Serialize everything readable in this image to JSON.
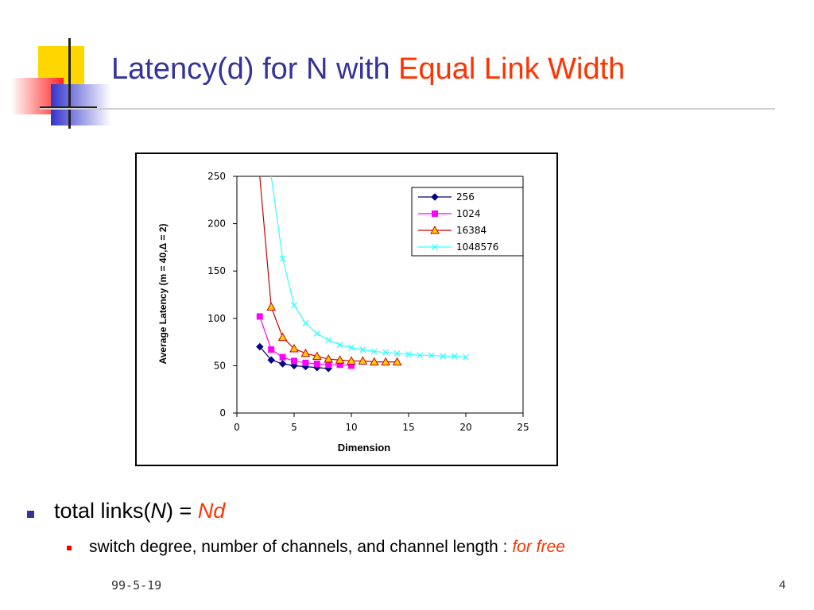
{
  "slide": {
    "title_main": "Latency(d) for N with ",
    "title_accent": "Equal Link Width",
    "bullet1_prefix": "total links(",
    "bullet1_var": "N",
    "bullet1_mid": ") = ",
    "bullet1_value": "Nd",
    "bullet2_text": "switch degree, number of channels, and channel length : ",
    "bullet2_accent": "for free",
    "footer_date": "99-5-19",
    "page_number": "4"
  },
  "chart_data": {
    "type": "line",
    "xlabel": "Dimension",
    "ylabel": "Average Latency (m = 40,Δ = 2)",
    "xlim": [
      0,
      25
    ],
    "ylim": [
      0,
      250
    ],
    "x_ticks": [
      "0",
      "5",
      "10",
      "15",
      "20",
      "25"
    ],
    "y_ticks": [
      "0",
      "50",
      "100",
      "150",
      "200",
      "250"
    ],
    "grid": false,
    "legend_position": "top-right",
    "series": [
      {
        "name": "256",
        "color": "#000080",
        "marker": "diamond",
        "x": [
          2,
          3,
          4,
          5,
          6,
          7,
          8
        ],
        "y": [
          70,
          56,
          52,
          50,
          49,
          48,
          47
        ]
      },
      {
        "name": "1024",
        "color": "#ff00ff",
        "marker": "square",
        "x": [
          2,
          3,
          4,
          5,
          6,
          7,
          8,
          9,
          10
        ],
        "y": [
          102,
          67,
          59,
          55,
          53,
          52,
          51,
          51,
          50
        ]
      },
      {
        "name": "16384",
        "color": "#cc0000",
        "marker": "triangle",
        "x": [
          2,
          3,
          4,
          5,
          6,
          7,
          8,
          9,
          10,
          11,
          12,
          13,
          14
        ],
        "y": [
          250,
          112,
          80,
          68,
          63,
          60,
          57,
          56,
          55,
          55,
          54,
          54,
          54
        ]
      },
      {
        "name": "1048576",
        "color": "#33ffff",
        "marker": "x",
        "x": [
          3,
          4,
          5,
          6,
          7,
          8,
          9,
          10,
          11,
          12,
          13,
          14,
          15,
          16,
          17,
          18,
          19,
          20
        ],
        "y": [
          250,
          163,
          114,
          95,
          84,
          77,
          72,
          69,
          67,
          65,
          64,
          63,
          62,
          61,
          61,
          60,
          60,
          59
        ]
      }
    ]
  }
}
